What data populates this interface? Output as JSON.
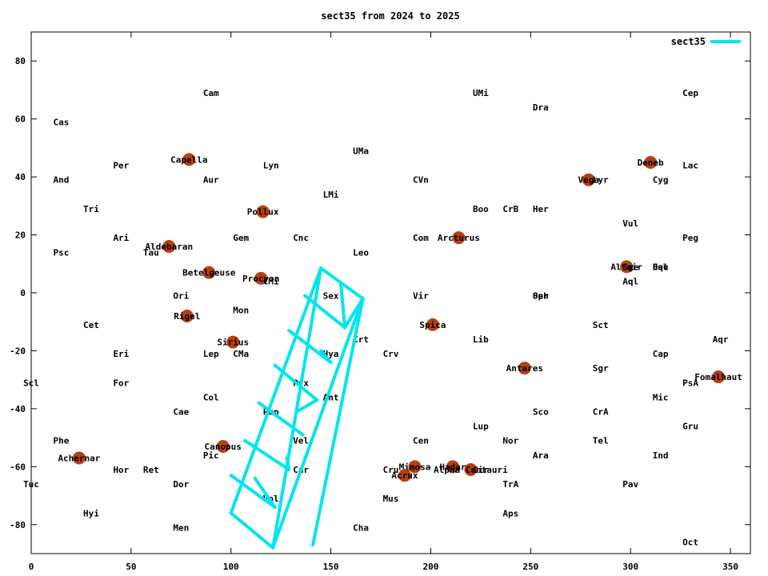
{
  "chart_data": {
    "type": "scatter",
    "title": "sect35 from 2024 to 2025",
    "xlabel": "",
    "ylabel": "",
    "xlim": [
      0,
      360
    ],
    "ylim": [
      -90,
      90
    ],
    "xticks": [
      0,
      50,
      100,
      150,
      200,
      250,
      300,
      350
    ],
    "yticks": [
      -80,
      -60,
      -40,
      -20,
      0,
      20,
      40,
      60,
      80
    ],
    "grid": false,
    "legend_position": "top-right",
    "series_color": "#00e5ee",
    "star_color": "#b8400e",
    "series": [
      {
        "name": "sect35",
        "segments": [
          [
            [
              145,
              8.5
            ],
            [
              121,
              -88
            ]
          ],
          [
            [
              166,
              -2
            ],
            [
              141,
              -87
            ]
          ],
          [
            [
              121,
              -88
            ],
            [
              100,
              -76
            ]
          ],
          [
            [
              145,
              8.5
            ],
            [
              166,
              -2
            ]
          ],
          [
            [
              145,
              8.5
            ],
            [
              100,
              -76
            ]
          ],
          [
            [
              166,
              -2
            ],
            [
              121,
              -88
            ]
          ],
          [
            [
              137,
              -1
            ],
            [
              157,
              -12
            ]
          ],
          [
            [
              129,
              -13
            ],
            [
              150,
              -24
            ]
          ],
          [
            [
              122,
              -25
            ],
            [
              143,
              -37
            ]
          ],
          [
            [
              114,
              -38
            ],
            [
              136,
              -49
            ]
          ],
          [
            [
              107,
              -51
            ],
            [
              129,
              -61
            ]
          ],
          [
            [
              100,
              -63
            ],
            [
              122,
              -74
            ]
          ],
          [
            [
              155,
              3
            ],
            [
              157,
              -12
            ]
          ],
          [
            [
              157,
              -12
            ],
            [
              166,
              -2
            ]
          ],
          [
            [
              145,
              -20
            ],
            [
              150,
              -24
            ]
          ],
          [
            [
              143,
              -37
            ],
            [
              133,
              -41
            ]
          ],
          [
            [
              128,
              -57
            ],
            [
              129,
              -61
            ]
          ],
          [
            [
              122,
              -74
            ],
            [
              112,
              -64
            ]
          ]
        ]
      }
    ],
    "constellations": [
      {
        "name": "Cam",
        "x": 90,
        "y": 69
      },
      {
        "name": "UMi",
        "x": 225,
        "y": 69
      },
      {
        "name": "Cep",
        "x": 330,
        "y": 69
      },
      {
        "name": "Cas",
        "x": 15,
        "y": 59
      },
      {
        "name": "Dra",
        "x": 255,
        "y": 64
      },
      {
        "name": "UMa",
        "x": 165,
        "y": 49
      },
      {
        "name": "Per",
        "x": 45,
        "y": 44
      },
      {
        "name": "Lyn",
        "x": 120,
        "y": 44
      },
      {
        "name": "Lac",
        "x": 330,
        "y": 44
      },
      {
        "name": "And",
        "x": 15,
        "y": 39
      },
      {
        "name": "Aur",
        "x": 90,
        "y": 39
      },
      {
        "name": "CVn",
        "x": 195,
        "y": 39
      },
      {
        "name": "Cyg",
        "x": 315,
        "y": 39
      },
      {
        "name": "Lyr",
        "x": 285,
        "y": 39
      },
      {
        "name": "LMi",
        "x": 150,
        "y": 34
      },
      {
        "name": "Tri",
        "x": 30,
        "y": 29
      },
      {
        "name": "Boo",
        "x": 225,
        "y": 29
      },
      {
        "name": "CrB",
        "x": 240,
        "y": 29
      },
      {
        "name": "Her",
        "x": 255,
        "y": 29
      },
      {
        "name": "Vul",
        "x": 300,
        "y": 24
      },
      {
        "name": "Ari",
        "x": 45,
        "y": 19
      },
      {
        "name": "Gem",
        "x": 105,
        "y": 19
      },
      {
        "name": "Cnc",
        "x": 135,
        "y": 19
      },
      {
        "name": "Com",
        "x": 195,
        "y": 19
      },
      {
        "name": "Peg",
        "x": 330,
        "y": 19
      },
      {
        "name": "Psc",
        "x": 15,
        "y": 14
      },
      {
        "name": "Tau",
        "x": 60,
        "y": 14
      },
      {
        "name": "Leo",
        "x": 165,
        "y": 14
      },
      {
        "name": "Sge",
        "x": 300,
        "y": 9
      },
      {
        "name": "Equ",
        "x": 315,
        "y": 9
      },
      {
        "name": "Del",
        "x": 315,
        "y": 9
      },
      {
        "name": "Aql",
        "x": 300,
        "y": 4
      },
      {
        "name": "CMi",
        "x": 120,
        "y": 4
      },
      {
        "name": "Ori",
        "x": 75,
        "y": -1
      },
      {
        "name": "Sex",
        "x": 150,
        "y": -1
      },
      {
        "name": "Vir",
        "x": 195,
        "y": -1
      },
      {
        "name": "Oph",
        "x": 255,
        "y": -1
      },
      {
        "name": "Ser",
        "x": 255,
        "y": -1
      },
      {
        "name": "Mon",
        "x": 105,
        "y": -6
      },
      {
        "name": "Cet",
        "x": 30,
        "y": -11
      },
      {
        "name": "Sct",
        "x": 285,
        "y": -11
      },
      {
        "name": "Crt",
        "x": 165,
        "y": -16
      },
      {
        "name": "Lib",
        "x": 225,
        "y": -16
      },
      {
        "name": "Aqr",
        "x": 345,
        "y": -16
      },
      {
        "name": "Eri",
        "x": 45,
        "y": -21
      },
      {
        "name": "Lep",
        "x": 90,
        "y": -21
      },
      {
        "name": "CMa",
        "x": 105,
        "y": -21
      },
      {
        "name": "Hya",
        "x": 150,
        "y": -21
      },
      {
        "name": "Crv",
        "x": 180,
        "y": -21
      },
      {
        "name": "Cap",
        "x": 315,
        "y": -21
      },
      {
        "name": "Sgr",
        "x": 285,
        "y": -26
      },
      {
        "name": "Scl",
        "x": 0,
        "y": -31
      },
      {
        "name": "For",
        "x": 45,
        "y": -31
      },
      {
        "name": "Pyx",
        "x": 135,
        "y": -31
      },
      {
        "name": "PsA",
        "x": 330,
        "y": -31
      },
      {
        "name": "Col",
        "x": 90,
        "y": -36
      },
      {
        "name": "Ant",
        "x": 150,
        "y": -36
      },
      {
        "name": "Mic",
        "x": 315,
        "y": -36
      },
      {
        "name": "Cae",
        "x": 75,
        "y": -41
      },
      {
        "name": "Pup",
        "x": 120,
        "y": -41
      },
      {
        "name": "Sco",
        "x": 255,
        "y": -41
      },
      {
        "name": "CrA",
        "x": 285,
        "y": -41
      },
      {
        "name": "Lup",
        "x": 225,
        "y": -46
      },
      {
        "name": "Gru",
        "x": 330,
        "y": -46
      },
      {
        "name": "Phe",
        "x": 15,
        "y": -51
      },
      {
        "name": "Vel",
        "x": 135,
        "y": -51
      },
      {
        "name": "Cen",
        "x": 195,
        "y": -51
      },
      {
        "name": "Nor",
        "x": 240,
        "y": -51
      },
      {
        "name": "Tel",
        "x": 285,
        "y": -51
      },
      {
        "name": "Pic",
        "x": 90,
        "y": -56
      },
      {
        "name": "Ara",
        "x": 255,
        "y": -56
      },
      {
        "name": "Ind",
        "x": 315,
        "y": -56
      },
      {
        "name": "Hor",
        "x": 45,
        "y": -61
      },
      {
        "name": "Ret",
        "x": 60,
        "y": -61
      },
      {
        "name": "Car",
        "x": 135,
        "y": -61
      },
      {
        "name": "Cru",
        "x": 180,
        "y": -61
      },
      {
        "name": "Cir",
        "x": 225,
        "y": -61
      },
      {
        "name": "Tuc",
        "x": 0,
        "y": -66
      },
      {
        "name": "Dor",
        "x": 75,
        "y": -66
      },
      {
        "name": "TrA",
        "x": 240,
        "y": -66
      },
      {
        "name": "Pav",
        "x": 300,
        "y": -66
      },
      {
        "name": "Mus",
        "x": 180,
        "y": -71
      },
      {
        "name": "Vol",
        "x": 120,
        "y": -71
      },
      {
        "name": "Hyi",
        "x": 30,
        "y": -76
      },
      {
        "name": "Aps",
        "x": 240,
        "y": -76
      },
      {
        "name": "Men",
        "x": 75,
        "y": -81
      },
      {
        "name": "Cha",
        "x": 165,
        "y": -81
      },
      {
        "name": "Oct",
        "x": 330,
        "y": -86
      }
    ],
    "stars": [
      {
        "name": "Capella",
        "x": 79,
        "y": 46
      },
      {
        "name": "Deneb",
        "x": 310,
        "y": 45
      },
      {
        "name": "Vega",
        "x": 279,
        "y": 39
      },
      {
        "name": "Pollux",
        "x": 116,
        "y": 28
      },
      {
        "name": "Arcturus",
        "x": 214,
        "y": 19
      },
      {
        "name": "Aldebaran",
        "x": 69,
        "y": 16
      },
      {
        "name": "Altair",
        "x": 298,
        "y": 9
      },
      {
        "name": "Betelgeuse",
        "x": 89,
        "y": 7
      },
      {
        "name": "Procyon",
        "x": 115,
        "y": 5
      },
      {
        "name": "Rigel",
        "x": 78,
        "y": -8
      },
      {
        "name": "Spica",
        "x": 201,
        "y": -11
      },
      {
        "name": "Sirius",
        "x": 101,
        "y": -17
      },
      {
        "name": "Antares",
        "x": 247,
        "y": -26
      },
      {
        "name": "Fomalhaut",
        "x": 344,
        "y": -29
      },
      {
        "name": "Canopus",
        "x": 96,
        "y": -53
      },
      {
        "name": "Achernar",
        "x": 24,
        "y": -57
      },
      {
        "name": "Mimosa",
        "x": 192,
        "y": -60
      },
      {
        "name": "Hadar",
        "x": 211,
        "y": -60
      },
      {
        "name": "Alpha Centauri",
        "x": 220,
        "y": -61
      },
      {
        "name": "Acrux",
        "x": 187,
        "y": -63
      }
    ]
  }
}
